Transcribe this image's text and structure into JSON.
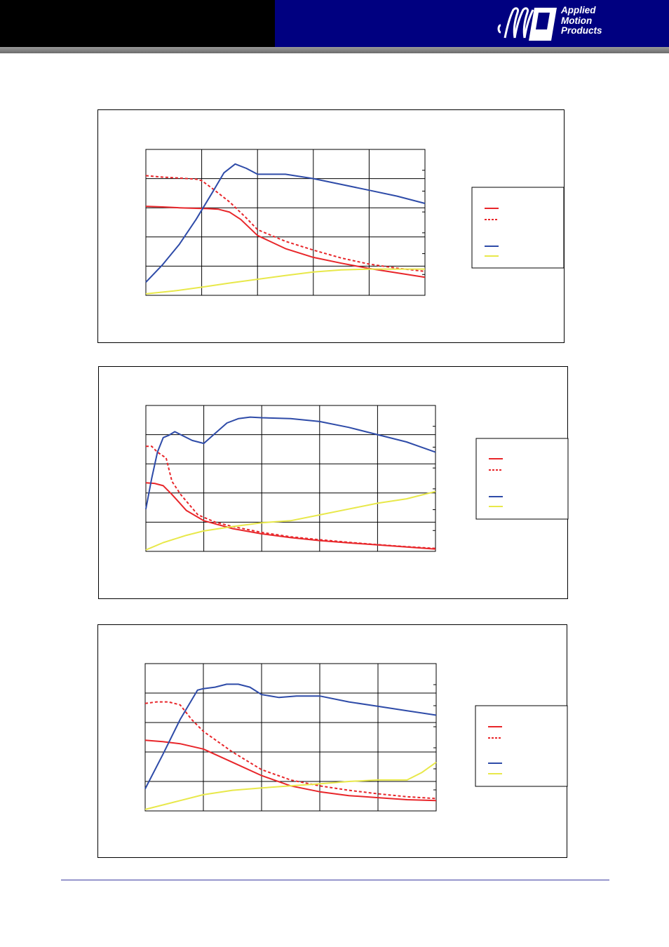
{
  "brand": {
    "logo_lines": [
      "Applied",
      "Motion",
      "Products"
    ],
    "colors": {
      "header_left": "#000000",
      "header_right": "#000080",
      "logo_text": "#ffffff"
    }
  },
  "chart_data": [
    {
      "type": "line",
      "xlim": [
        0,
        5
      ],
      "ylim": [
        0,
        5
      ],
      "grid": true,
      "legend_placement": "right",
      "series": [
        {
          "color": "#e8262a",
          "dash": false,
          "x": [
            0,
            0.3,
            0.6,
            0.9,
            1.1,
            1.3,
            1.5,
            1.7,
            2.0,
            2.5,
            3.0,
            3.5,
            4.0,
            4.5,
            5.0
          ],
          "y": [
            3.05,
            3.03,
            3.0,
            2.98,
            2.97,
            2.95,
            2.85,
            2.6,
            2.05,
            1.6,
            1.3,
            1.1,
            0.92,
            0.77,
            0.62
          ]
        },
        {
          "color": "#e8262a",
          "dash": true,
          "x": [
            0,
            0.3,
            0.6,
            0.9,
            1.0,
            1.2,
            1.5,
            1.8,
            2.0,
            2.5,
            3.0,
            3.5,
            4.0,
            4.5,
            5.0
          ],
          "y": [
            4.1,
            4.05,
            4.02,
            3.98,
            3.93,
            3.65,
            3.2,
            2.65,
            2.25,
            1.85,
            1.55,
            1.28,
            1.07,
            0.93,
            0.82
          ]
        },
        {
          "color": "#2e4ba8",
          "dash": false,
          "x": [
            0,
            0.3,
            0.6,
            0.9,
            1.2,
            1.4,
            1.6,
            1.8,
            2.0,
            2.2,
            2.5,
            3.0,
            3.5,
            4.0,
            4.5,
            5.0
          ],
          "y": [
            0.45,
            1.05,
            1.75,
            2.6,
            3.55,
            4.2,
            4.5,
            4.35,
            4.15,
            4.15,
            4.15,
            4.0,
            3.8,
            3.6,
            3.4,
            3.15
          ]
        },
        {
          "color": "#e8e84a",
          "dash": false,
          "x": [
            0,
            0.5,
            1.0,
            1.5,
            2.0,
            2.5,
            3.0,
            3.5,
            4.0,
            4.5,
            5.0
          ],
          "y": [
            0.05,
            0.15,
            0.28,
            0.42,
            0.55,
            0.68,
            0.8,
            0.87,
            0.9,
            0.9,
            0.9
          ]
        }
      ]
    },
    {
      "type": "line",
      "xlim": [
        0,
        5
      ],
      "ylim": [
        0,
        5
      ],
      "grid": true,
      "legend_placement": "right",
      "series": [
        {
          "color": "#e8262a",
          "dash": false,
          "x": [
            0,
            0.15,
            0.3,
            0.45,
            0.7,
            1.0,
            1.5,
            2.0,
            2.5,
            3.0,
            3.5,
            4.0,
            4.5,
            5.0
          ],
          "y": [
            2.35,
            2.33,
            2.25,
            1.95,
            1.4,
            1.05,
            0.78,
            0.6,
            0.47,
            0.37,
            0.29,
            0.22,
            0.15,
            0.08
          ]
        },
        {
          "color": "#e8262a",
          "dash": true,
          "x": [
            0,
            0.1,
            0.2,
            0.35,
            0.45,
            0.6,
            0.9,
            1.2,
            1.5,
            2.0,
            2.5,
            3.0,
            3.5,
            4.0,
            4.5,
            5.0
          ],
          "y": [
            3.6,
            3.6,
            3.4,
            3.2,
            2.4,
            1.95,
            1.25,
            1.0,
            0.85,
            0.65,
            0.5,
            0.4,
            0.31,
            0.23,
            0.16,
            0.1
          ]
        },
        {
          "color": "#2e4ba8",
          "dash": false,
          "x": [
            0,
            0.1,
            0.2,
            0.3,
            0.4,
            0.5,
            0.6,
            0.8,
            1.0,
            1.2,
            1.4,
            1.6,
            1.8,
            2.0,
            2.5,
            3.0,
            3.5,
            4.0,
            4.5,
            5.0
          ],
          "y": [
            1.45,
            2.5,
            3.4,
            3.9,
            3.98,
            4.1,
            4.0,
            3.8,
            3.7,
            4.05,
            4.4,
            4.55,
            4.6,
            4.58,
            4.55,
            4.45,
            4.25,
            4.0,
            3.75,
            3.4
          ]
        },
        {
          "color": "#e8e84a",
          "dash": false,
          "x": [
            0,
            0.3,
            0.7,
            1.0,
            1.5,
            2.0,
            2.5,
            3.0,
            3.5,
            4.0,
            4.5,
            5.0
          ],
          "y": [
            0.05,
            0.3,
            0.55,
            0.7,
            0.85,
            0.98,
            1.05,
            1.25,
            1.45,
            1.65,
            1.8,
            2.05
          ]
        }
      ]
    },
    {
      "type": "line",
      "xlim": [
        0,
        5
      ],
      "ylim": [
        0,
        5
      ],
      "grid": true,
      "legend_placement": "right",
      "series": [
        {
          "color": "#e8262a",
          "dash": false,
          "x": [
            0,
            0.3,
            0.6,
            1.0,
            1.5,
            2.0,
            2.5,
            3.0,
            3.5,
            4.0,
            4.5,
            5.0
          ],
          "y": [
            2.4,
            2.35,
            2.28,
            2.1,
            1.65,
            1.2,
            0.85,
            0.65,
            0.52,
            0.45,
            0.38,
            0.35
          ]
        },
        {
          "color": "#e8262a",
          "dash": true,
          "x": [
            0,
            0.2,
            0.4,
            0.6,
            0.8,
            1.0,
            1.5,
            2.0,
            2.5,
            3.0,
            3.5,
            4.0,
            4.5,
            5.0
          ],
          "y": [
            3.65,
            3.7,
            3.7,
            3.6,
            3.1,
            2.7,
            2.0,
            1.4,
            1.05,
            0.85,
            0.7,
            0.58,
            0.48,
            0.42
          ]
        },
        {
          "color": "#2e4ba8",
          "dash": false,
          "x": [
            0,
            0.3,
            0.6,
            0.9,
            1.0,
            1.2,
            1.4,
            1.6,
            1.8,
            2.0,
            2.3,
            2.6,
            3.0,
            3.5,
            4.0,
            4.5,
            5.0
          ],
          "y": [
            0.75,
            1.9,
            3.1,
            4.1,
            4.15,
            4.2,
            4.3,
            4.3,
            4.2,
            3.95,
            3.85,
            3.9,
            3.9,
            3.7,
            3.55,
            3.4,
            3.25
          ]
        },
        {
          "color": "#e8e84a",
          "dash": false,
          "x": [
            0,
            0.5,
            1.0,
            1.5,
            2.0,
            2.5,
            3.0,
            3.5,
            4.0,
            4.5,
            4.75,
            5.0
          ],
          "y": [
            0.05,
            0.3,
            0.55,
            0.7,
            0.78,
            0.85,
            0.92,
            1.0,
            1.05,
            1.05,
            1.3,
            1.65
          ]
        }
      ]
    }
  ]
}
